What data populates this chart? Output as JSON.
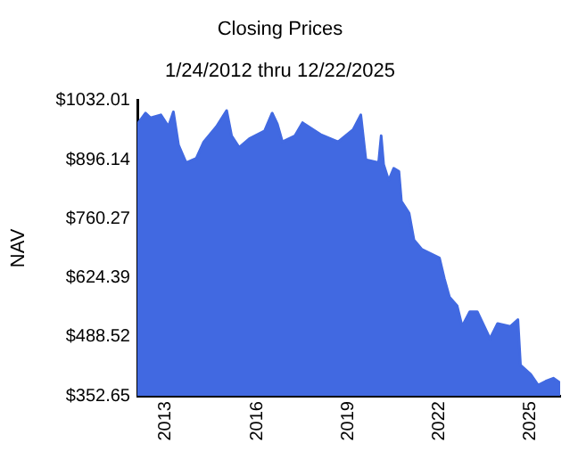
{
  "chart_data": {
    "type": "area",
    "title": "Closing Prices",
    "subtitle": "1/24/2012 thru 12/22/2025",
    "ylabel": "NAV",
    "x": [
      "2012-01-24",
      "2012-05",
      "2012-07",
      "2012-11",
      "2013-02",
      "2013-04",
      "2013-06",
      "2013-09",
      "2014-01",
      "2014-04",
      "2014-09",
      "2015-01",
      "2015-03",
      "2015-06",
      "2015-10",
      "2016-04",
      "2016-07",
      "2016-09",
      "2016-11",
      "2017-04",
      "2017-07",
      "2018-02",
      "2018-09",
      "2019-03",
      "2019-06",
      "2019-08",
      "2020-01",
      "2020-02",
      "2020-03",
      "2020-05",
      "2020-07",
      "2020-09",
      "2020-10",
      "2021-01",
      "2021-03",
      "2021-06",
      "2022-01",
      "2022-03",
      "2022-05",
      "2022-08",
      "2022-10",
      "2023-01",
      "2023-04",
      "2023-09",
      "2023-12",
      "2024-05",
      "2024-08",
      "2024-09",
      "2025-01",
      "2025-04",
      "2025-07",
      "2025-10",
      "2025-12-22"
    ],
    "series": [
      {
        "color": "#4169e1",
        "values": [
          978,
          1003,
          992,
          999,
          972,
          1006,
          930,
          889,
          899,
          937,
          972,
          1009,
          951,
          924,
          944,
          962,
          1003,
          978,
          937,
          951,
          981,
          954,
          937,
          965,
          999,
          896,
          889,
          951,
          885,
          848,
          876,
          869,
          800,
          773,
          711,
          690,
          670,
          622,
          580,
          560,
          512,
          546,
          546,
          484,
          519,
          512,
          528,
          423,
          402,
          377,
          386,
          393,
          382
        ]
      }
    ],
    "xlim": [
      "2012-01-24",
      "2025-12-22"
    ],
    "xticks": [
      "2013",
      "2016",
      "2019",
      "2022",
      "2025"
    ],
    "ylim": [
      352.65,
      1032.01
    ],
    "yticks": [
      {
        "value": 352.65,
        "label": "$352.65"
      },
      {
        "value": 488.52,
        "label": "$488.52"
      },
      {
        "value": 624.39,
        "label": "$624.39"
      },
      {
        "value": 760.27,
        "label": "$760.27"
      },
      {
        "value": 896.14,
        "label": "$896.14"
      },
      {
        "value": 1032.01,
        "label": "$1032.01"
      }
    ],
    "grid": false,
    "legend": false
  }
}
